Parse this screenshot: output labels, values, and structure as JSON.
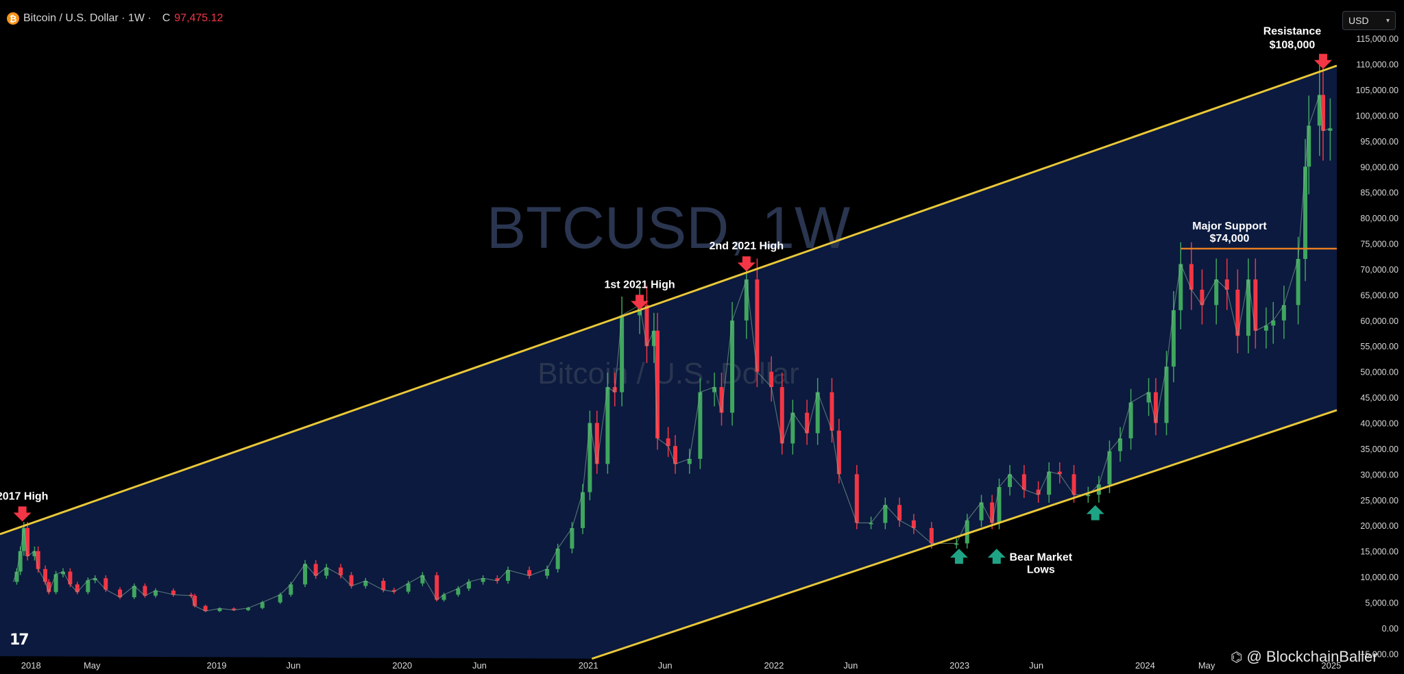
{
  "header": {
    "symbol_icon": "bitcoin-icon",
    "title": "Bitcoin / U.S. Dollar · 1W ·",
    "close_label": "C",
    "close_value": "97,475.12"
  },
  "currency_select": {
    "value": "USD",
    "icon": "chevron-down-icon"
  },
  "watermark": {
    "line1": "BTCUSD, 1W",
    "line2": "Bitcoin / U.S. Dollar"
  },
  "credit": {
    "icon": "binance-square-icon",
    "text": "@ BlockchainBaller"
  },
  "tv_logo": "17",
  "colors": {
    "background": "#000000",
    "channel_fill": "#0b1a3e",
    "channel_line": "#e9c83a",
    "support_line": "#e67e22",
    "up_candle": "#3fa65e",
    "down_candle": "#f23645",
    "down_arrow": "#f23645",
    "up_arrow": "#1fa385",
    "axis_text": "#d9d9d9"
  },
  "chart_data": {
    "type": "line",
    "series": [
      {
        "values": [
          [
            "2017-11-27",
            9000
          ],
          [
            "2017-12-04",
            11000
          ],
          [
            "2017-12-11",
            15000
          ],
          [
            "2017-12-18",
            19500
          ],
          [
            "2017-12-25",
            14000
          ],
          [
            "2018-01-08",
            15000
          ],
          [
            "2018-01-15",
            11500
          ],
          [
            "2018-01-29",
            9000
          ],
          [
            "2018-02-05",
            7000
          ],
          [
            "2018-02-19",
            10500
          ],
          [
            "2018-03-05",
            11000
          ],
          [
            "2018-03-19",
            8500
          ],
          [
            "2018-04-02",
            7000
          ],
          [
            "2018-04-23",
            9300
          ],
          [
            "2018-05-07",
            9700
          ],
          [
            "2018-05-28",
            7500
          ],
          [
            "2018-06-25",
            6000
          ],
          [
            "2018-07-23",
            8200
          ],
          [
            "2018-08-13",
            6300
          ],
          [
            "2018-09-03",
            7300
          ],
          [
            "2018-10-08",
            6500
          ],
          [
            "2018-11-12",
            6300
          ],
          [
            "2018-11-19",
            4300
          ],
          [
            "2018-12-10",
            3300
          ],
          [
            "2019-01-07",
            3800
          ],
          [
            "2019-02-04",
            3500
          ],
          [
            "2019-03-04",
            3900
          ],
          [
            "2019-04-01",
            5000
          ],
          [
            "2019-05-06",
            6500
          ],
          [
            "2019-05-27",
            8500
          ],
          [
            "2019-06-24",
            12500
          ],
          [
            "2019-07-15",
            10200
          ],
          [
            "2019-08-05",
            11800
          ],
          [
            "2019-09-02",
            10300
          ],
          [
            "2019-09-23",
            8200
          ],
          [
            "2019-10-21",
            9200
          ],
          [
            "2019-11-25",
            7400
          ],
          [
            "2019-12-16",
            7100
          ],
          [
            "2020-01-13",
            8700
          ],
          [
            "2020-02-10",
            10300
          ],
          [
            "2020-03-09",
            5500
          ],
          [
            "2020-03-23",
            6500
          ],
          [
            "2020-04-20",
            7700
          ],
          [
            "2020-05-11",
            9000
          ],
          [
            "2020-06-08",
            9700
          ],
          [
            "2020-07-06",
            9200
          ],
          [
            "2020-07-27",
            11300
          ],
          [
            "2020-09-07",
            10200
          ],
          [
            "2020-10-12",
            11500
          ],
          [
            "2020-11-02",
            15500
          ],
          [
            "2020-11-30",
            19500
          ],
          [
            "2020-12-21",
            26500
          ],
          [
            "2021-01-04",
            40000
          ],
          [
            "2021-01-18",
            32000
          ],
          [
            "2021-02-08",
            47000
          ],
          [
            "2021-02-22",
            46000
          ],
          [
            "2021-03-08",
            61000
          ],
          [
            "2021-04-12",
            63000
          ],
          [
            "2021-04-26",
            55000
          ],
          [
            "2021-05-10",
            58000
          ],
          [
            "2021-05-17",
            37000
          ],
          [
            "2021-06-07",
            35500
          ],
          [
            "2021-06-21",
            32000
          ],
          [
            "2021-07-19",
            33000
          ],
          [
            "2021-08-09",
            46000
          ],
          [
            "2021-09-06",
            47000
          ],
          [
            "2021-09-20",
            42000
          ],
          [
            "2021-10-11",
            60000
          ],
          [
            "2021-11-08",
            68000
          ],
          [
            "2021-11-29",
            50000
          ],
          [
            "2021-12-27",
            47000
          ],
          [
            "2022-01-17",
            36000
          ],
          [
            "2022-02-07",
            42000
          ],
          [
            "2022-03-07",
            38000
          ],
          [
            "2022-03-28",
            46000
          ],
          [
            "2022-04-25",
            38500
          ],
          [
            "2022-05-09",
            30000
          ],
          [
            "2022-06-13",
            20500
          ],
          [
            "2022-07-11",
            20500
          ],
          [
            "2022-08-08",
            24000
          ],
          [
            "2022-09-05",
            21000
          ],
          [
            "2022-10-03",
            19500
          ],
          [
            "2022-11-07",
            16500
          ],
          [
            "2022-12-26",
            16500
          ],
          [
            "2023-01-16",
            21000
          ],
          [
            "2023-02-13",
            24500
          ],
          [
            "2023-03-06",
            20500
          ],
          [
            "2023-03-20",
            27500
          ],
          [
            "2023-04-10",
            30000
          ],
          [
            "2023-05-08",
            27000
          ],
          [
            "2023-06-05",
            26000
          ],
          [
            "2023-06-26",
            30500
          ],
          [
            "2023-07-17",
            30000
          ],
          [
            "2023-08-14",
            26000
          ],
          [
            "2023-09-11",
            26000
          ],
          [
            "2023-10-02",
            28000
          ],
          [
            "2023-10-23",
            34500
          ],
          [
            "2023-11-13",
            37000
          ],
          [
            "2023-12-04",
            44000
          ],
          [
            "2024-01-08",
            46000
          ],
          [
            "2024-01-22",
            40000
          ],
          [
            "2024-02-12",
            51000
          ],
          [
            "2024-02-26",
            62000
          ],
          [
            "2024-03-11",
            71000
          ],
          [
            "2024-04-01",
            66000
          ],
          [
            "2024-04-22",
            63000
          ],
          [
            "2024-05-20",
            68000
          ],
          [
            "2024-06-10",
            66000
          ],
          [
            "2024-07-01",
            57000
          ],
          [
            "2024-07-22",
            68000
          ],
          [
            "2024-08-05",
            58000
          ],
          [
            "2024-08-26",
            59000
          ],
          [
            "2024-09-09",
            60000
          ],
          [
            "2024-09-30",
            63000
          ],
          [
            "2024-10-28",
            72000
          ],
          [
            "2024-11-11",
            90000
          ],
          [
            "2024-11-18",
            98000
          ],
          [
            "2024-12-09",
            104000
          ],
          [
            "2024-12-16",
            97000
          ],
          [
            "2024-12-30",
            97475
          ]
        ]
      }
    ],
    "x_axis": {
      "ticks": [
        "2018",
        "May",
        "2019",
        "Jun",
        "2020",
        "Jun",
        "2021",
        "Jun",
        "2022",
        "Jun",
        "2023",
        "Jun",
        "2024",
        "May",
        "2025"
      ],
      "tick_dates": [
        "2018-01-01",
        "2018-05-01",
        "2019-01-01",
        "2019-06-01",
        "2020-01-01",
        "2020-06-01",
        "2021-01-01",
        "2021-06-01",
        "2022-01-01",
        "2022-06-01",
        "2023-01-01",
        "2023-06-01",
        "2024-01-01",
        "2024-05-01",
        "2025-01-01"
      ],
      "range": [
        "2017-11-01",
        "2025-01-12"
      ]
    },
    "y_axis": {
      "ticks": [
        "115,000.00",
        "110,000.00",
        "105,000.00",
        "100,000.00",
        "95,000.00",
        "90,000.00",
        "85,000.00",
        "80,000.00",
        "75,000.00",
        "70,000.00",
        "65,000.00",
        "60,000.00",
        "55,000.00",
        "50,000.00",
        "45,000.00",
        "40,000.00",
        "35,000.00",
        "30,000.00",
        "25,000.00",
        "20,000.00",
        "15,000.00",
        "10,000.00",
        "5,000.00",
        "0.00",
        "−5,000.00"
      ],
      "range": [
        -5500,
        116500
      ],
      "position": "right"
    },
    "channel": {
      "upper": [
        [
          "2017-11-01",
          18300
        ],
        [
          "2025-01-12",
          109700
        ]
      ],
      "lower": [
        [
          "2021-01-08",
          -6000
        ],
        [
          "2025-01-12",
          42500
        ]
      ]
    },
    "support_line": {
      "from": "2024-03-11",
      "to": "2025-01-12",
      "value": 74000
    },
    "annotations": [
      {
        "text": "2017 High",
        "date": "2017-12-15",
        "value": 19700,
        "marker": "down"
      },
      {
        "text": "1st 2021 High",
        "date": "2021-04-12",
        "value": 61000,
        "marker": "down"
      },
      {
        "text": "2nd 2021 High",
        "date": "2021-11-08",
        "value": 68500,
        "marker": "down"
      },
      {
        "text": "Resistance",
        "text2": "$108,000",
        "date": "2024-12-16",
        "value": 108000,
        "marker": "down"
      },
      {
        "text": "Major Support",
        "text2": "$74,000",
        "date": "2024-06-15",
        "value": 74000,
        "marker": "none"
      },
      {
        "text": "Bear Market",
        "text2": "Lows",
        "date": "2023-06-10",
        "value": 15000,
        "marker": "none"
      },
      {
        "text": "",
        "date": "2022-12-31",
        "value": 16000,
        "marker": "up"
      },
      {
        "text": "",
        "date": "2023-03-15",
        "value": 16000,
        "marker": "up"
      },
      {
        "text": "",
        "date": "2023-09-25",
        "value": 24500,
        "marker": "up"
      }
    ],
    "grid": false,
    "legend": "none"
  }
}
